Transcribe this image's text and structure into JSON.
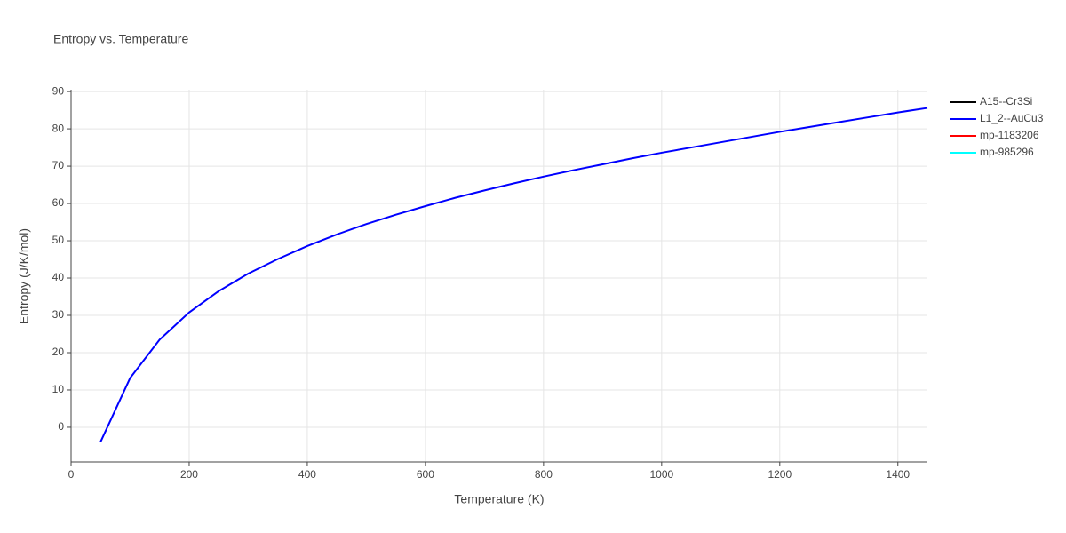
{
  "chart_data": {
    "type": "line",
    "title": "Entropy vs. Temperature",
    "x_label": "Temperature (K)",
    "y_label": "Entropy (J/K/mol)",
    "x": [
      50,
      100,
      150,
      200,
      250,
      300,
      350,
      400,
      450,
      500,
      550,
      600,
      650,
      700,
      750,
      800,
      850,
      900,
      950,
      1000,
      1050,
      1100,
      1150,
      1200,
      1250,
      1300,
      1350,
      1400,
      1450
    ],
    "series": [
      {
        "name": "A15--Cr3Si",
        "color": "#000000",
        "values": [
          null,
          null,
          null,
          null,
          null,
          null,
          null,
          null,
          null,
          null,
          null,
          null,
          null,
          null,
          null,
          null,
          null,
          null,
          null,
          null,
          null,
          null,
          null,
          null,
          null,
          null,
          null,
          null,
          null
        ]
      },
      {
        "name": "L1_2--AuCu3",
        "color": "#0000ff",
        "values": [
          -3.9,
          13.2,
          23.5,
          30.8,
          36.5,
          41.2,
          45.1,
          48.6,
          51.7,
          54.5,
          57.0,
          59.3,
          61.5,
          63.5,
          65.4,
          67.2,
          68.9,
          70.5,
          72.1,
          73.6,
          75.0,
          76.4,
          77.8,
          79.2,
          80.5,
          81.8,
          83.1,
          84.4,
          85.6
        ]
      },
      {
        "name": "mp-1183206",
        "color": "#ff0000",
        "values": [
          null,
          null,
          null,
          null,
          null,
          null,
          null,
          null,
          null,
          null,
          null,
          null,
          null,
          null,
          null,
          null,
          null,
          null,
          null,
          null,
          null,
          null,
          null,
          null,
          null,
          null,
          null,
          null,
          null
        ]
      },
      {
        "name": "mp-985296",
        "color": "#00ffff",
        "values": [
          null,
          null,
          null,
          null,
          null,
          null,
          null,
          null,
          null,
          null,
          null,
          null,
          null,
          null,
          null,
          null,
          null,
          null,
          null,
          null,
          null,
          null,
          null,
          null,
          null,
          null,
          null,
          null,
          null
        ]
      }
    ],
    "xlim": [
      0,
      1450
    ],
    "ylim": [
      -9.3,
      90.5
    ],
    "xticks": [
      0,
      200,
      400,
      600,
      800,
      1000,
      1200,
      1400
    ],
    "yticks": [
      0,
      10,
      20,
      30,
      40,
      50,
      60,
      70,
      80,
      90
    ],
    "grid": true,
    "legend": "right"
  }
}
